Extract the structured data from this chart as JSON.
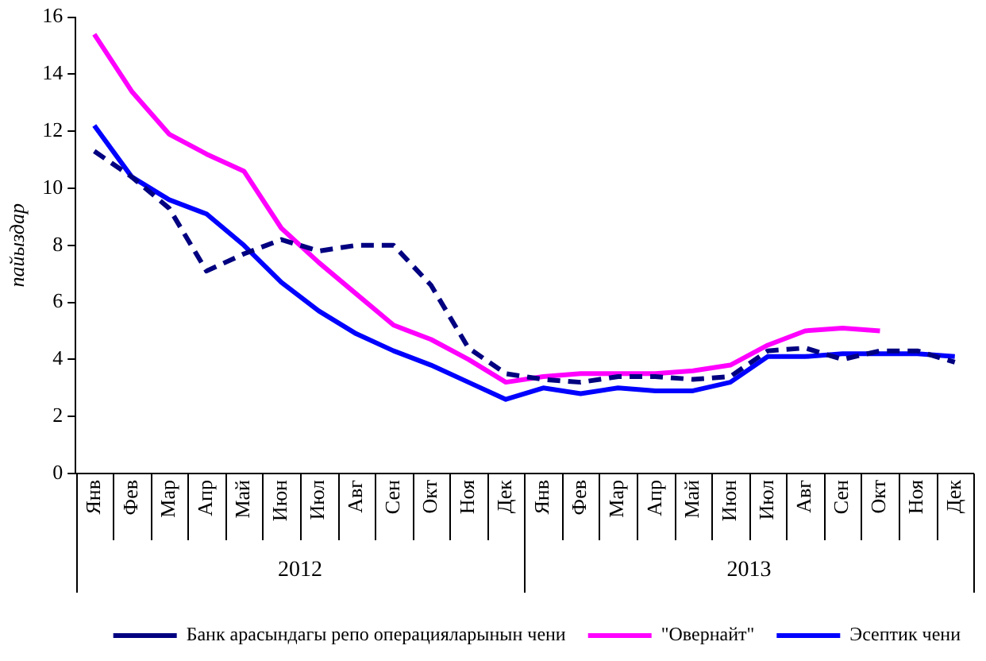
{
  "chart_data": {
    "type": "line",
    "ylabel": "пайыздар",
    "categories": [
      "Янв",
      "Фев",
      "Мар",
      "Апр",
      "Май",
      "Июн",
      "Июл",
      "Авг",
      "Сен",
      "Окт",
      "Ноя",
      "Дек",
      "Янв",
      "Фев",
      "Мар",
      "Апр",
      "Май",
      "Июн",
      "Июл",
      "Авг",
      "Сен",
      "Окт",
      "Ноя",
      "Дек"
    ],
    "annotations": [
      "2012",
      "2013"
    ],
    "series": [
      {
        "name": "Банк арасындагы репо операцияларынын чени",
        "color": "#000080",
        "line_style": "dashed",
        "values": [
          11.3,
          10.4,
          9.3,
          7.1,
          7.7,
          8.2,
          7.8,
          8.0,
          8.0,
          6.6,
          4.4,
          3.5,
          3.3,
          3.2,
          3.4,
          3.4,
          3.3,
          3.4,
          4.3,
          4.4,
          4.0,
          4.3,
          4.3,
          3.9
        ]
      },
      {
        "name": "\"Овернайт\"",
        "color": "#ff00ff",
        "line_style": "solid",
        "values": [
          15.4,
          13.4,
          11.9,
          11.2,
          10.6,
          8.6,
          7.4,
          6.3,
          5.2,
          4.7,
          4.0,
          3.2,
          3.4,
          3.5,
          3.5,
          3.5,
          3.6,
          3.8,
          4.5,
          5.0,
          5.1,
          5.0,
          null,
          null
        ]
      },
      {
        "name": "Эсептик чени",
        "color": "#0000ff",
        "line_style": "solid",
        "values": [
          12.2,
          10.4,
          9.6,
          9.1,
          8.0,
          6.7,
          5.7,
          4.9,
          4.3,
          3.8,
          3.2,
          2.6,
          3.0,
          2.8,
          3.0,
          2.9,
          2.9,
          3.2,
          4.1,
          4.1,
          4.2,
          4.2,
          4.2,
          4.1
        ]
      }
    ],
    "ylim": [
      0,
      16
    ],
    "yticks": [
      0,
      2,
      4,
      6,
      8,
      10,
      12,
      14,
      16
    ],
    "grid": false,
    "legend": "bottom",
    "marker": "none"
  }
}
